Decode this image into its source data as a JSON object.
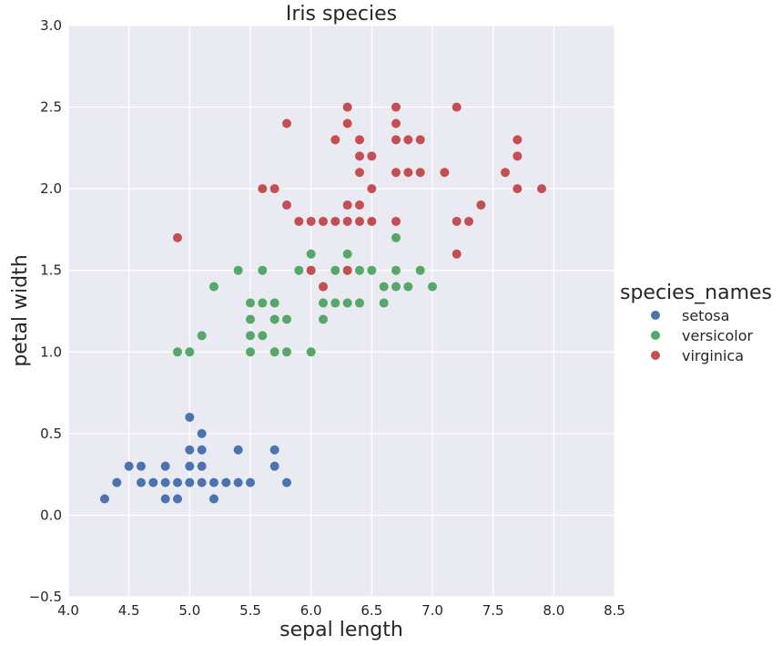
{
  "chart_data": {
    "type": "scatter",
    "title": "Iris species",
    "xlabel": "sepal length",
    "ylabel": "petal width",
    "xlim": [
      4.0,
      8.5
    ],
    "ylim": [
      -0.5,
      3.0
    ],
    "xticks": [
      "4.0",
      "4.5",
      "5.0",
      "5.5",
      "6.0",
      "6.5",
      "7.0",
      "7.5",
      "8.0",
      "8.5"
    ],
    "yticks": [
      "−0.5",
      "0.0",
      "0.5",
      "1.0",
      "1.5",
      "2.0",
      "2.5",
      "3.0"
    ],
    "grid": true,
    "legend": {
      "title": "species_names",
      "placement": "right"
    },
    "series": [
      {
        "name": "setosa",
        "color": "#4c72b0",
        "points": [
          [
            4.3,
            0.1
          ],
          [
            4.4,
            0.2
          ],
          [
            4.5,
            0.3
          ],
          [
            4.6,
            0.2
          ],
          [
            4.6,
            0.3
          ],
          [
            4.7,
            0.2
          ],
          [
            4.8,
            0.1
          ],
          [
            4.8,
            0.2
          ],
          [
            4.8,
            0.3
          ],
          [
            4.9,
            0.1
          ],
          [
            4.9,
            0.2
          ],
          [
            5.0,
            0.2
          ],
          [
            5.0,
            0.3
          ],
          [
            5.0,
            0.4
          ],
          [
            5.0,
            0.6
          ],
          [
            5.1,
            0.2
          ],
          [
            5.1,
            0.3
          ],
          [
            5.1,
            0.4
          ],
          [
            5.1,
            0.5
          ],
          [
            5.2,
            0.1
          ],
          [
            5.2,
            0.2
          ],
          [
            5.3,
            0.2
          ],
          [
            5.4,
            0.2
          ],
          [
            5.4,
            0.4
          ],
          [
            5.5,
            0.2
          ],
          [
            5.7,
            0.3
          ],
          [
            5.7,
            0.4
          ],
          [
            5.8,
            0.2
          ]
        ]
      },
      {
        "name": "versicolor",
        "color": "#55a868",
        "points": [
          [
            4.9,
            1.0
          ],
          [
            5.0,
            1.0
          ],
          [
            5.1,
            1.1
          ],
          [
            5.2,
            1.4
          ],
          [
            5.4,
            1.5
          ],
          [
            5.5,
            1.0
          ],
          [
            5.5,
            1.1
          ],
          [
            5.5,
            1.2
          ],
          [
            5.5,
            1.3
          ],
          [
            5.6,
            1.1
          ],
          [
            5.6,
            1.3
          ],
          [
            5.6,
            1.5
          ],
          [
            5.7,
            1.0
          ],
          [
            5.7,
            1.2
          ],
          [
            5.7,
            1.3
          ],
          [
            5.8,
            1.0
          ],
          [
            5.8,
            1.2
          ],
          [
            5.9,
            1.5
          ],
          [
            6.0,
            1.0
          ],
          [
            6.0,
            1.5
          ],
          [
            6.0,
            1.6
          ],
          [
            6.1,
            1.2
          ],
          [
            6.1,
            1.3
          ],
          [
            6.1,
            1.4
          ],
          [
            6.2,
            1.3
          ],
          [
            6.2,
            1.5
          ],
          [
            6.3,
            1.3
          ],
          [
            6.3,
            1.5
          ],
          [
            6.3,
            1.6
          ],
          [
            6.4,
            1.3
          ],
          [
            6.4,
            1.5
          ],
          [
            6.5,
            1.5
          ],
          [
            6.6,
            1.3
          ],
          [
            6.6,
            1.4
          ],
          [
            6.7,
            1.4
          ],
          [
            6.7,
            1.5
          ],
          [
            6.7,
            1.7
          ],
          [
            6.8,
            1.4
          ],
          [
            6.9,
            1.5
          ],
          [
            7.0,
            1.4
          ]
        ]
      },
      {
        "name": "virginica",
        "color": "#c44e52",
        "points": [
          [
            4.9,
            1.7
          ],
          [
            5.6,
            2.0
          ],
          [
            5.7,
            2.0
          ],
          [
            5.8,
            1.9
          ],
          [
            5.8,
            2.4
          ],
          [
            5.9,
            1.8
          ],
          [
            6.0,
            1.5
          ],
          [
            6.0,
            1.8
          ],
          [
            6.1,
            1.4
          ],
          [
            6.1,
            1.8
          ],
          [
            6.2,
            1.8
          ],
          [
            6.2,
            2.3
          ],
          [
            6.3,
            1.5
          ],
          [
            6.3,
            1.8
          ],
          [
            6.3,
            1.9
          ],
          [
            6.3,
            2.4
          ],
          [
            6.3,
            2.5
          ],
          [
            6.4,
            1.8
          ],
          [
            6.4,
            1.9
          ],
          [
            6.4,
            2.1
          ],
          [
            6.4,
            2.2
          ],
          [
            6.4,
            2.3
          ],
          [
            6.5,
            1.8
          ],
          [
            6.5,
            2.0
          ],
          [
            6.5,
            2.2
          ],
          [
            6.7,
            1.8
          ],
          [
            6.7,
            2.1
          ],
          [
            6.7,
            2.3
          ],
          [
            6.7,
            2.4
          ],
          [
            6.7,
            2.5
          ],
          [
            6.8,
            2.1
          ],
          [
            6.8,
            2.3
          ],
          [
            6.9,
            2.1
          ],
          [
            6.9,
            2.3
          ],
          [
            7.1,
            2.1
          ],
          [
            7.2,
            1.6
          ],
          [
            7.2,
            1.8
          ],
          [
            7.2,
            2.5
          ],
          [
            7.3,
            1.8
          ],
          [
            7.4,
            1.9
          ],
          [
            7.6,
            2.1
          ],
          [
            7.7,
            2.0
          ],
          [
            7.7,
            2.2
          ],
          [
            7.7,
            2.3
          ],
          [
            7.9,
            2.0
          ]
        ]
      }
    ]
  }
}
